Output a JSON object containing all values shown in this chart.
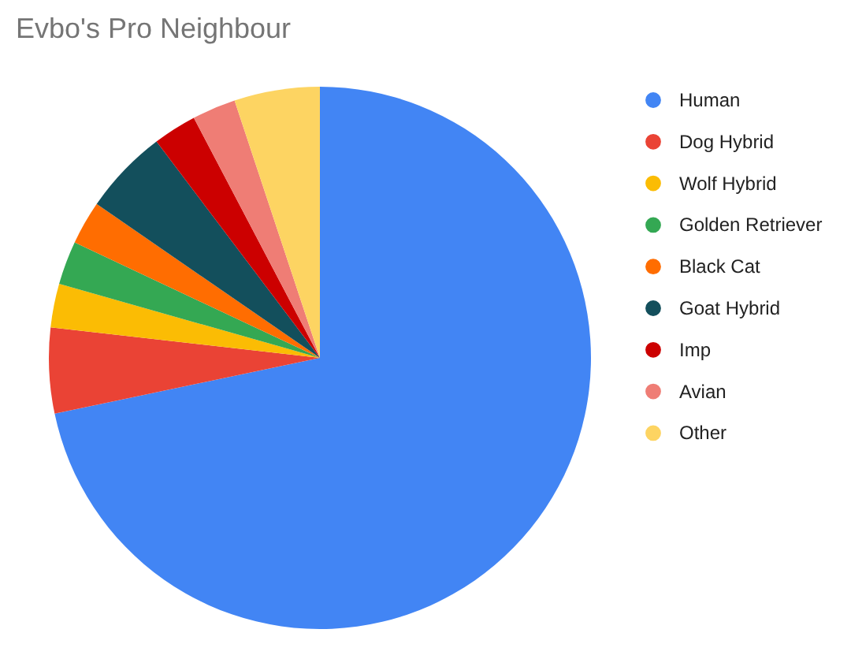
{
  "chart_data": {
    "type": "pie",
    "title": "Evbo's Pro Neighbour",
    "categories": [
      "Human",
      "Dog Hybrid",
      "Wolf Hybrid",
      "Golden Retriever",
      "Black Cat",
      "Goat Hybrid",
      "Imp",
      "Avian",
      "Other"
    ],
    "values": [
      71.7,
      5.1,
      2.6,
      2.6,
      2.6,
      5.1,
      2.6,
      2.6,
      5.1
    ],
    "colors": [
      "#4285f4",
      "#ea4335",
      "#fbbc04",
      "#34a853",
      "#ff6d01",
      "#134f5c",
      "#cc0000",
      "#ef7d75",
      "#fdd462"
    ],
    "legend": "right"
  }
}
